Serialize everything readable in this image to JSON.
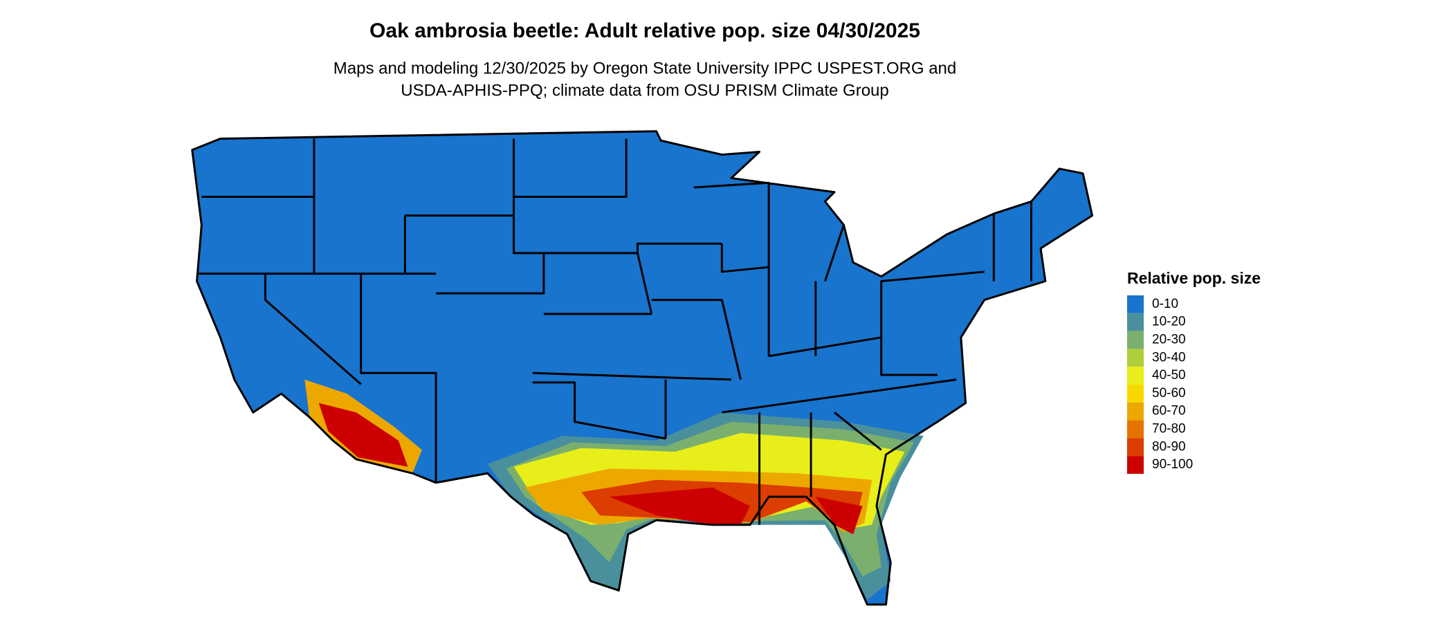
{
  "title": "Oak ambrosia beetle: Adult relative pop. size 04/30/2025",
  "subtitle": [
    "Maps and modeling 12/30/2025 by Oregon State University IPPC USPEST.ORG and",
    "USDA-APHIS-PPQ; climate data from OSU PRISM Climate Group"
  ],
  "legend": {
    "title": "Relative pop. size",
    "items": [
      {
        "label": "0-10",
        "color": "#1874cd"
      },
      {
        "label": "10-20",
        "color": "#4a8f9c"
      },
      {
        "label": "20-30",
        "color": "#7baf6e"
      },
      {
        "label": "30-40",
        "color": "#afce3a"
      },
      {
        "label": "40-50",
        "color": "#e8ee1a"
      },
      {
        "label": "50-60",
        "color": "#f8d800"
      },
      {
        "label": "60-70",
        "color": "#eda800"
      },
      {
        "label": "70-80",
        "color": "#e67300"
      },
      {
        "label": "80-90",
        "color": "#dc3d00"
      },
      {
        "label": "90-100",
        "color": "#cc0000"
      }
    ]
  }
}
